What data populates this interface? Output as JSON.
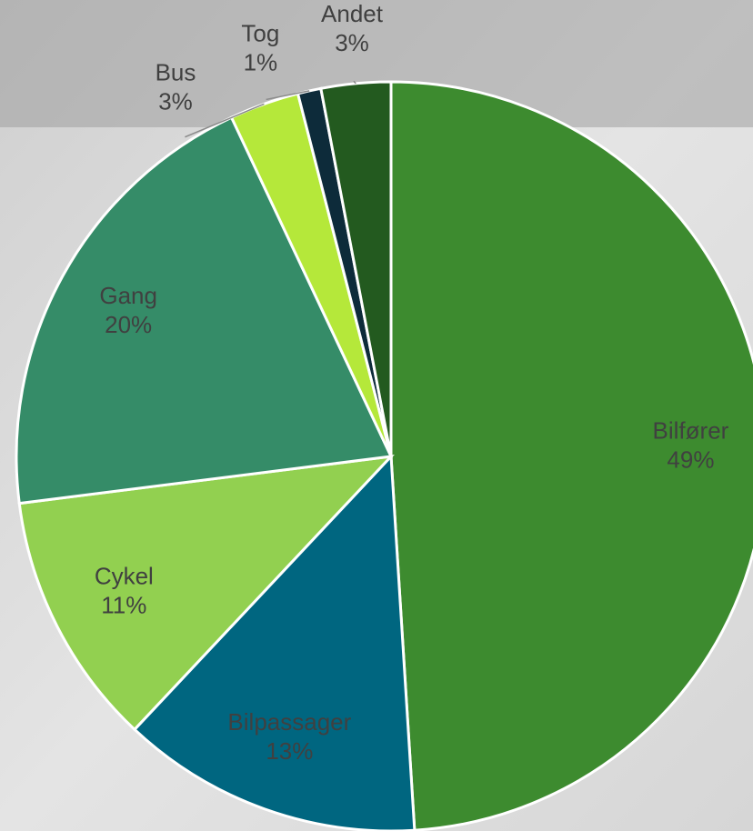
{
  "chart_data": {
    "type": "pie",
    "categories": [
      "Bilfører",
      "Bilpassager",
      "Cykel",
      "Gang",
      "Bus",
      "Tog",
      "Andet"
    ],
    "values": [
      49,
      13,
      11,
      20,
      3,
      1,
      3
    ],
    "value_labels": [
      "49%",
      "13%",
      "11%",
      "20%",
      "3%",
      "1%",
      "3%"
    ],
    "colors": [
      "#3d8b2f",
      "#006680",
      "#92d050",
      "#358c68",
      "#b5e83a",
      "#0d2b3a",
      "#235a1f"
    ]
  }
}
